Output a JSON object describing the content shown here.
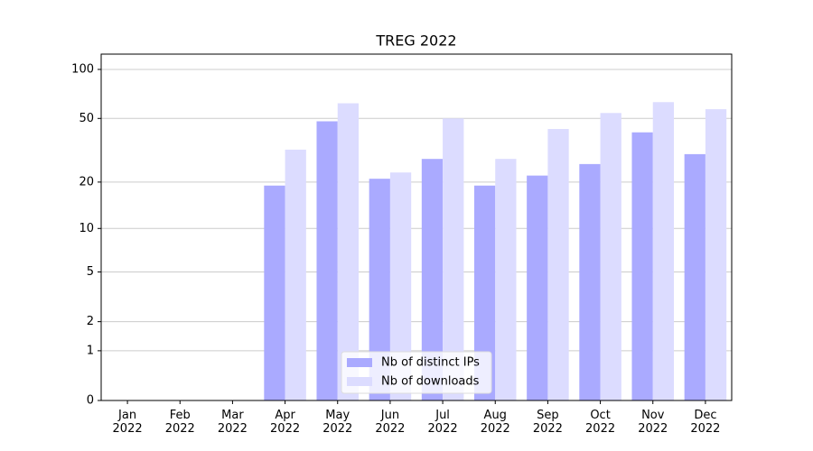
{
  "chart_data": {
    "type": "bar",
    "title": "TREG 2022",
    "categories": [
      "Jan 2022",
      "Feb 2022",
      "Mar 2022",
      "Apr 2022",
      "May 2022",
      "Jun 2022",
      "Jul 2022",
      "Aug 2022",
      "Sep 2022",
      "Oct 2022",
      "Nov 2022",
      "Dec 2022"
    ],
    "series": [
      {
        "name": "Nb of distinct IPs",
        "color": "#aaaaff",
        "values": [
          0,
          0,
          0,
          19,
          48,
          21,
          28,
          19,
          22,
          26,
          41,
          30
        ]
      },
      {
        "name": "Nb of downloads",
        "color": "#dcdcff",
        "values": [
          0,
          0,
          0,
          32,
          62,
          23,
          50,
          28,
          43,
          54,
          63,
          57
        ]
      }
    ],
    "yscale": "log1p",
    "ylim": [
      0,
      124
    ],
    "yticks": [
      0,
      1,
      2,
      5,
      10,
      20,
      50,
      100
    ],
    "grid": true,
    "legend": "lower center"
  }
}
